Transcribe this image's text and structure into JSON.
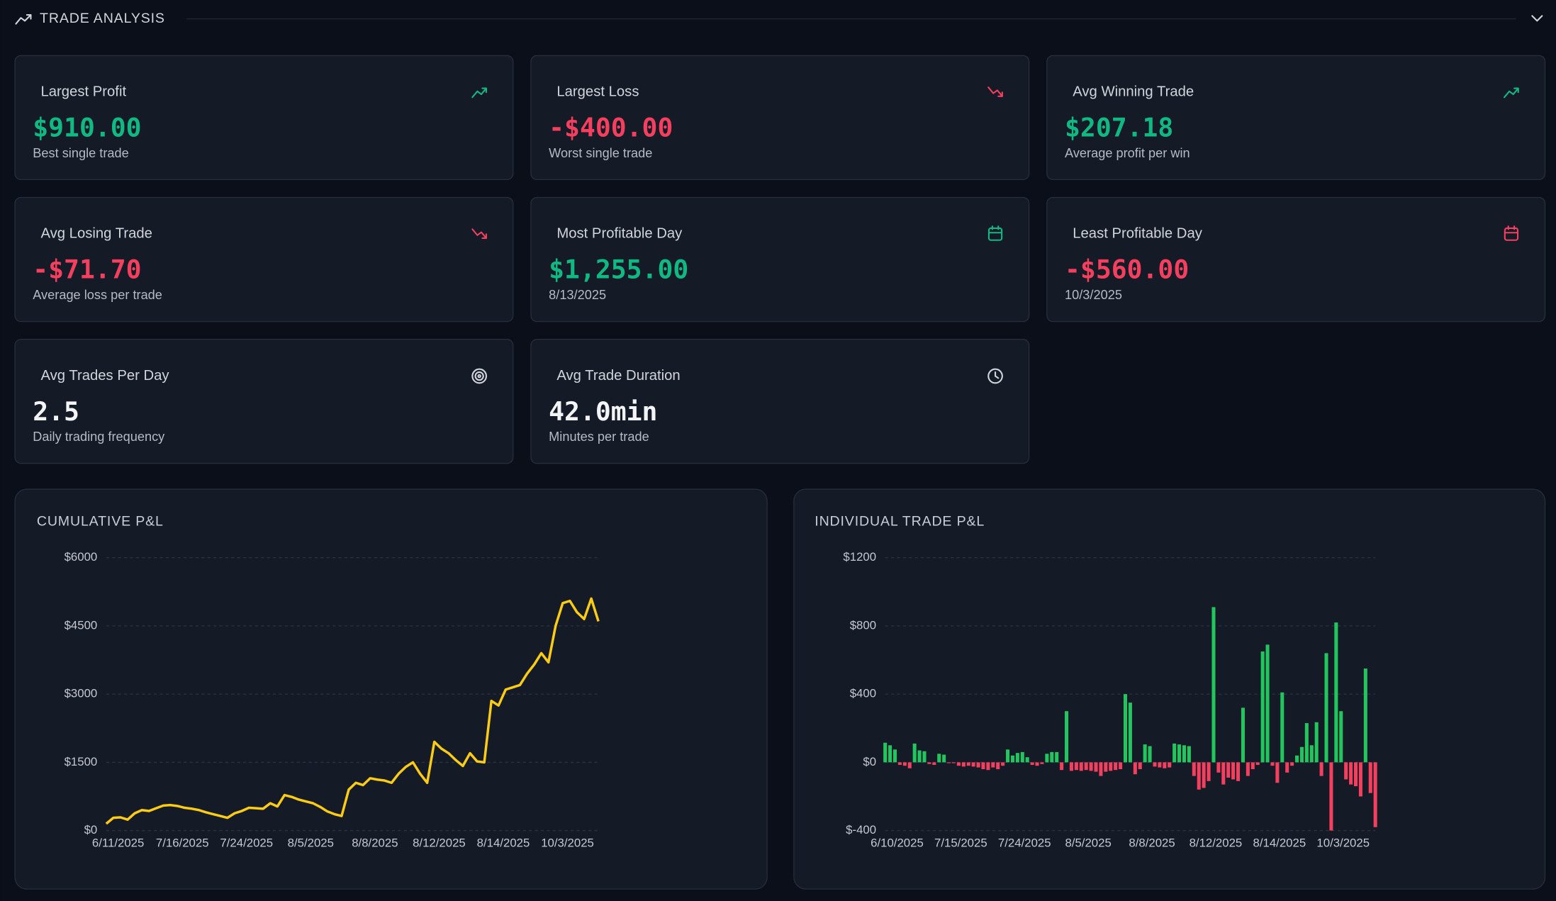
{
  "header": {
    "title": "TRADE ANALYSIS"
  },
  "cards": [
    {
      "label": "Largest Profit",
      "value": "$910.00",
      "subtitle": "Best single trade",
      "color": "#10b981"
    },
    {
      "label": "Largest Loss",
      "value": "-$400.00",
      "subtitle": "Worst single trade",
      "color": "#f43f5e"
    },
    {
      "label": "Avg Winning Trade",
      "value": "$207.18",
      "subtitle": "Average profit per win",
      "color": "#10b981"
    },
    {
      "label": "Avg Losing Trade",
      "value": "-$71.70",
      "subtitle": "Average loss per trade",
      "color": "#f43f5e"
    },
    {
      "label": "Most Profitable Day",
      "value": "$1,255.00",
      "subtitle": "8/13/2025",
      "color": "#10b981"
    },
    {
      "label": "Least Profitable Day",
      "value": "-$560.00",
      "subtitle": "10/3/2025",
      "color": "#f43f5e"
    },
    {
      "label": "Avg Trades Per Day",
      "value": "2.5",
      "subtitle": "Daily trading frequency",
      "color": "#f3f4f6"
    },
    {
      "label": "Avg Trade Duration",
      "value": "42.0min",
      "subtitle": "Minutes per trade",
      "color": "#f3f4f6"
    }
  ],
  "chart_data": [
    {
      "type": "line",
      "title": "CUMULATIVE P&L",
      "color": "#facc15",
      "grid": true,
      "categories": [
        "6/11/2025",
        null,
        null,
        null,
        null,
        null,
        null,
        null,
        null,
        "7/16/2025",
        null,
        null,
        null,
        null,
        null,
        null,
        null,
        null,
        "7/24/2025",
        null,
        null,
        null,
        null,
        null,
        null,
        null,
        null,
        "8/5/2025",
        null,
        null,
        null,
        null,
        null,
        null,
        null,
        null,
        "8/8/2025",
        null,
        null,
        null,
        null,
        null,
        null,
        null,
        null,
        "8/12/2025",
        null,
        null,
        null,
        null,
        null,
        null,
        null,
        null,
        "8/14/2025",
        null,
        null,
        null,
        null,
        null,
        null,
        null,
        null,
        "10/3/2025",
        null,
        null,
        null,
        null,
        null,
        null
      ],
      "values": [
        150,
        280,
        290,
        240,
        380,
        450,
        430,
        490,
        550,
        560,
        540,
        500,
        480,
        450,
        400,
        360,
        320,
        280,
        380,
        430,
        500,
        490,
        480,
        600,
        530,
        780,
        740,
        680,
        640,
        600,
        520,
        420,
        360,
        320,
        900,
        1050,
        1000,
        1150,
        1120,
        1100,
        1050,
        1250,
        1400,
        1500,
        1250,
        1050,
        1950,
        1800,
        1700,
        1550,
        1420,
        1700,
        1520,
        1500,
        2850,
        2750,
        3100,
        3150,
        3200,
        3450,
        3650,
        3900,
        3700,
        4500,
        5000,
        5050,
        4800,
        4650,
        5100,
        4600
      ],
      "ylim": [
        0,
        6000
      ],
      "yticks": [
        {
          "value": 0,
          "label": "$0"
        },
        {
          "value": 1500,
          "label": "$1500"
        },
        {
          "value": 3000,
          "label": "$3000"
        },
        {
          "value": 4500,
          "label": "$4500"
        },
        {
          "value": 6000,
          "label": "$6000"
        }
      ]
    },
    {
      "type": "bar",
      "title": "INDIVIDUAL TRADE P&L",
      "positive_color": "#22c55e",
      "negative_color": "#f43f5e",
      "grid": true,
      "categories": [
        "6/10/2025",
        null,
        null,
        null,
        null,
        null,
        null,
        null,
        null,
        null,
        null,
        null,
        null,
        "7/15/2025",
        null,
        null,
        null,
        null,
        null,
        null,
        null,
        null,
        null,
        null,
        null,
        null,
        "7/24/2025",
        null,
        null,
        null,
        null,
        null,
        null,
        null,
        null,
        null,
        null,
        null,
        null,
        "8/5/2025",
        null,
        null,
        null,
        null,
        null,
        null,
        null,
        null,
        null,
        null,
        null,
        null,
        "8/8/2025",
        null,
        null,
        null,
        null,
        null,
        null,
        null,
        null,
        null,
        null,
        null,
        null,
        "8/12/2025",
        null,
        null,
        null,
        null,
        null,
        null,
        null,
        null,
        null,
        null,
        null,
        null,
        "8/14/2025",
        null,
        null,
        null,
        null,
        null,
        null,
        null,
        null,
        null,
        null,
        null,
        null,
        "10/3/2025",
        null,
        null,
        null,
        null,
        null,
        null,
        null,
        null,
        null
      ],
      "values": [
        115,
        100,
        75,
        -15,
        -20,
        -35,
        110,
        70,
        65,
        -10,
        -15,
        50,
        45,
        -5,
        -5,
        -20,
        -25,
        -20,
        -25,
        -30,
        -40,
        -45,
        -30,
        -40,
        -20,
        75,
        40,
        55,
        60,
        30,
        -15,
        -20,
        -10,
        50,
        60,
        60,
        -45,
        300,
        -50,
        -45,
        -50,
        -45,
        -50,
        -55,
        -80,
        -55,
        -50,
        -45,
        -40,
        400,
        350,
        -70,
        -40,
        105,
        95,
        -25,
        -30,
        -35,
        -30,
        110,
        105,
        100,
        95,
        -80,
        -160,
        -150,
        -110,
        910,
        -60,
        -130,
        -90,
        -100,
        -110,
        320,
        -80,
        -40,
        -15,
        650,
        690,
        -20,
        -120,
        410,
        -60,
        -20,
        40,
        90,
        230,
        100,
        235,
        -80,
        640,
        -400,
        820,
        300,
        -100,
        -130,
        -140,
        -200,
        550,
        -180,
        -380
      ],
      "ylim": [
        -400,
        1200
      ],
      "yticks": [
        {
          "value": -400,
          "label": "$-400"
        },
        {
          "value": 0,
          "label": "$0"
        },
        {
          "value": 400,
          "label": "$400"
        },
        {
          "value": 800,
          "label": "$800"
        },
        {
          "value": 1200,
          "label": "$1200"
        }
      ]
    }
  ]
}
